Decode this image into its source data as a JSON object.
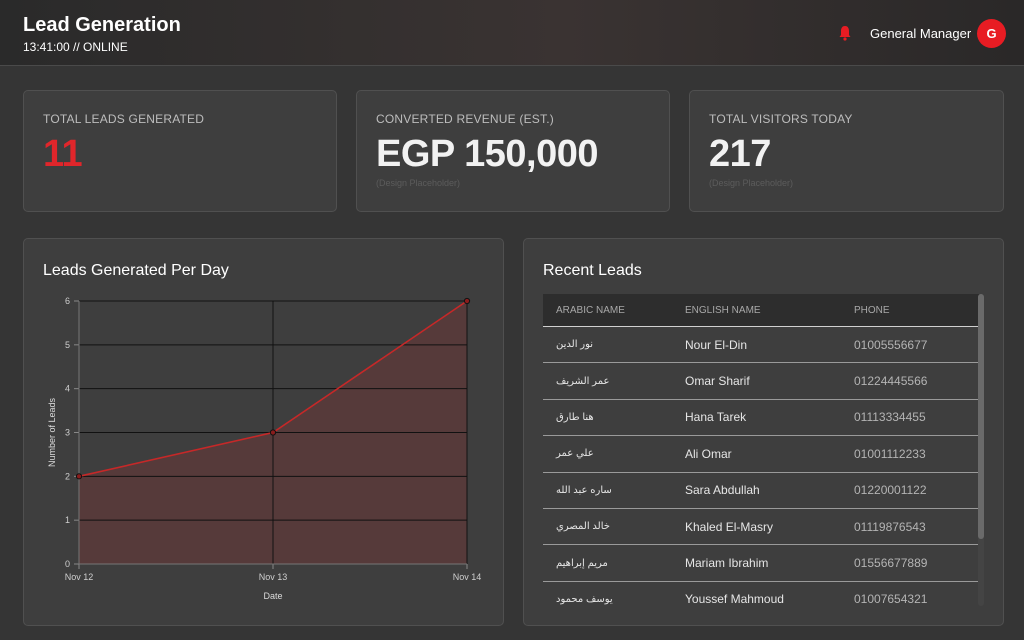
{
  "header": {
    "title": "Lead Generation",
    "status": "13:41:00 // ONLINE",
    "user_name": "General Manager",
    "avatar_initial": "G",
    "bell_icon": "bell-icon",
    "accent_color": "#e81c23"
  },
  "kpis": {
    "total_leads": {
      "label": "TOTAL LEADS GENERATED",
      "value": "11"
    },
    "revenue": {
      "label": "CONVERTED REVENUE (EST.)",
      "value": "EGP 150,000",
      "note": "(Design Placeholder)"
    },
    "visitors": {
      "label": "TOTAL VISITORS TODAY",
      "value": "217",
      "note": "(Design Placeholder)"
    }
  },
  "chart_panel": {
    "title": "Leads Generated Per Day"
  },
  "chart_data": {
    "type": "area",
    "title": "Leads Generated Per Day",
    "xlabel": "Date",
    "ylabel": "Number of Leads",
    "categories": [
      "Nov 12",
      "Nov 13",
      "Nov 14"
    ],
    "values": [
      2,
      3,
      6
    ],
    "ylim": [
      0,
      6
    ],
    "yticks": [
      0,
      1,
      2,
      3,
      4,
      5,
      6
    ],
    "grid": true,
    "line_color": "#c62828",
    "fill_color": "#5a3a3a"
  },
  "recent_leads": {
    "title": "Recent Leads",
    "columns": [
      "ARABIC NAME",
      "ENGLISH NAME",
      "PHONE"
    ],
    "rows": [
      {
        "arabic": "نور الدين",
        "english": "Nour El-Din",
        "phone": "01005556677"
      },
      {
        "arabic": "عمر الشريف",
        "english": "Omar Sharif",
        "phone": "01224445566"
      },
      {
        "arabic": "هنا طارق",
        "english": "Hana Tarek",
        "phone": "01113334455"
      },
      {
        "arabic": "علي عمر",
        "english": "Ali Omar",
        "phone": "01001112233"
      },
      {
        "arabic": "ساره عبد الله",
        "english": "Sara Abdullah",
        "phone": "01220001122"
      },
      {
        "arabic": "خالد المصري",
        "english": "Khaled El-Masry",
        "phone": "01119876543"
      },
      {
        "arabic": "مريم إبراهيم",
        "english": "Mariam Ibrahim",
        "phone": "01556677889"
      },
      {
        "arabic": "يوسف محمود",
        "english": "Youssef Mahmoud",
        "phone": "01007654321"
      }
    ]
  }
}
